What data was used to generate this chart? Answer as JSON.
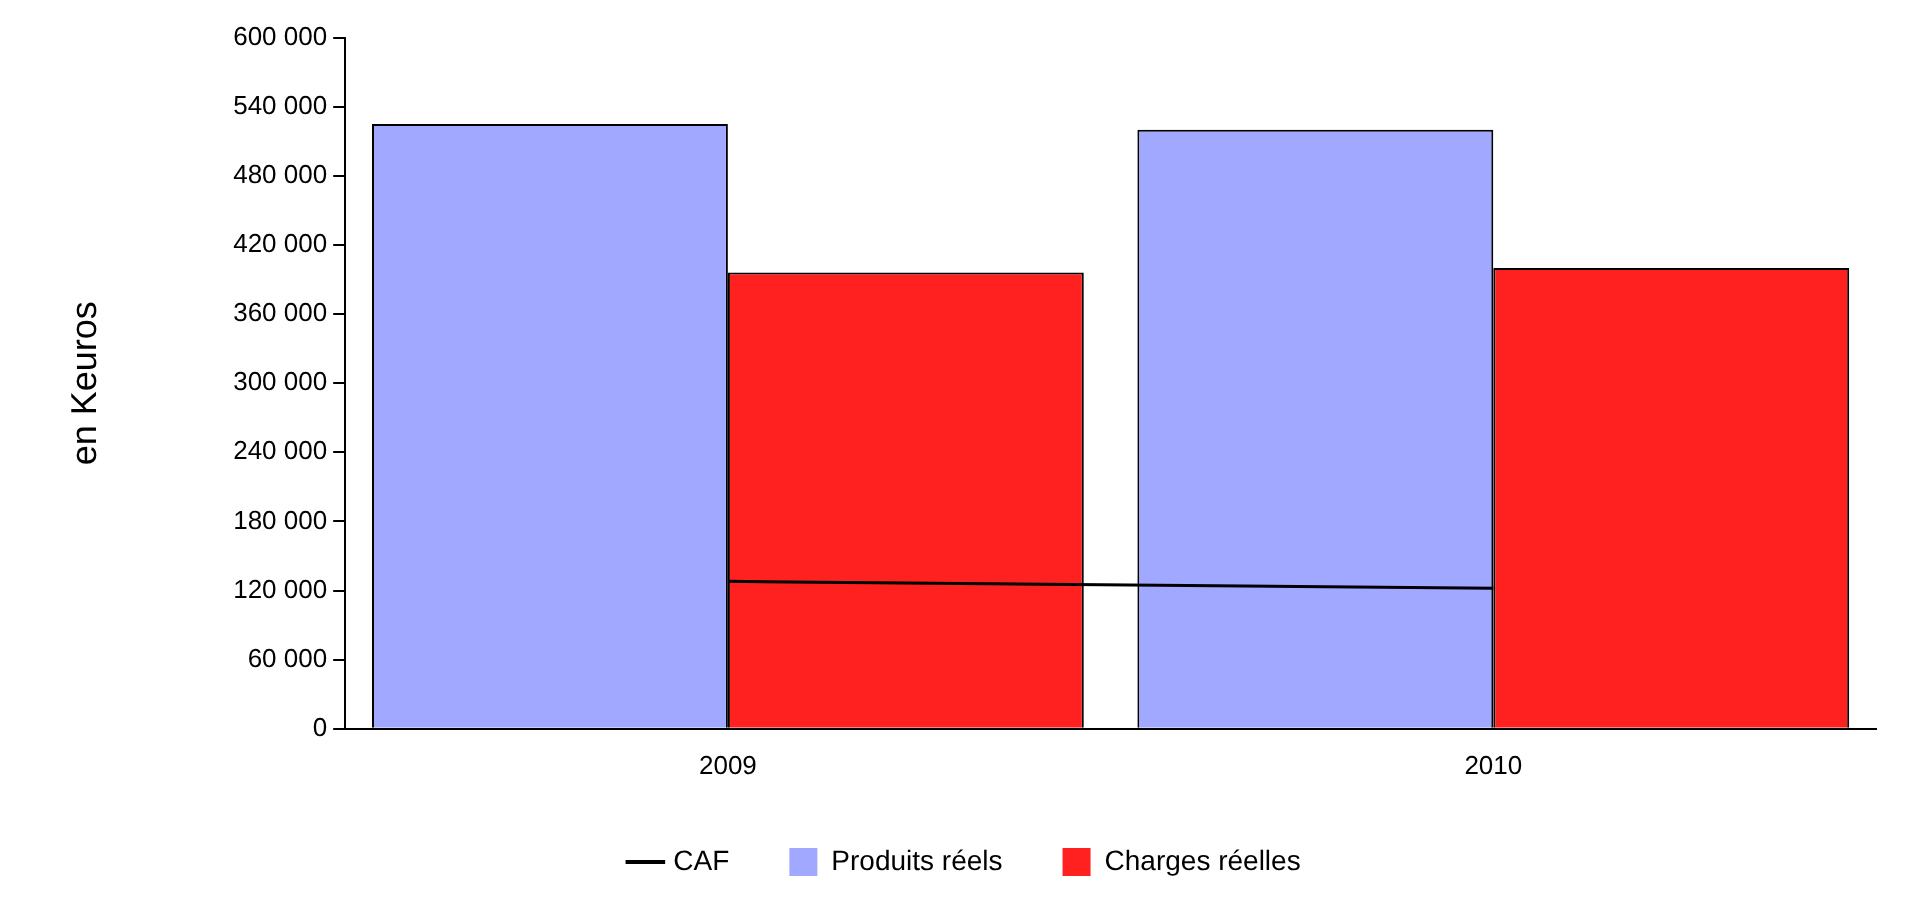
{
  "chart_data": {
    "type": "bar",
    "ylabel": "en Keuros",
    "categories": [
      "2009",
      "2010"
    ],
    "series": [
      {
        "name": "CAF",
        "type": "line",
        "color": "#000000",
        "values": [
          128000,
          122000
        ]
      },
      {
        "name": "Produits réels",
        "color": "#a0a8ff",
        "values": [
          525000,
          520000
        ]
      },
      {
        "name": "Charges réelles",
        "color": "#ff2020",
        "values": [
          396000,
          400000
        ]
      }
    ],
    "ylim": [
      0,
      600000
    ],
    "yticks": [
      {
        "value": 0,
        "label": "0"
      },
      {
        "value": 60000,
        "label": "60 000"
      },
      {
        "value": 120000,
        "label": "120 000"
      },
      {
        "value": 180000,
        "label": "180 000"
      },
      {
        "value": 240000,
        "label": "240 000"
      },
      {
        "value": 300000,
        "label": "300 000"
      },
      {
        "value": 360000,
        "label": "360 000"
      },
      {
        "value": 420000,
        "label": "420 000"
      },
      {
        "value": 480000,
        "label": "480 000"
      },
      {
        "value": 540000,
        "label": "540 000"
      },
      {
        "value": 600000,
        "label": "600 000"
      }
    ],
    "grid": false,
    "legend": "bottom",
    "marker": "none"
  }
}
